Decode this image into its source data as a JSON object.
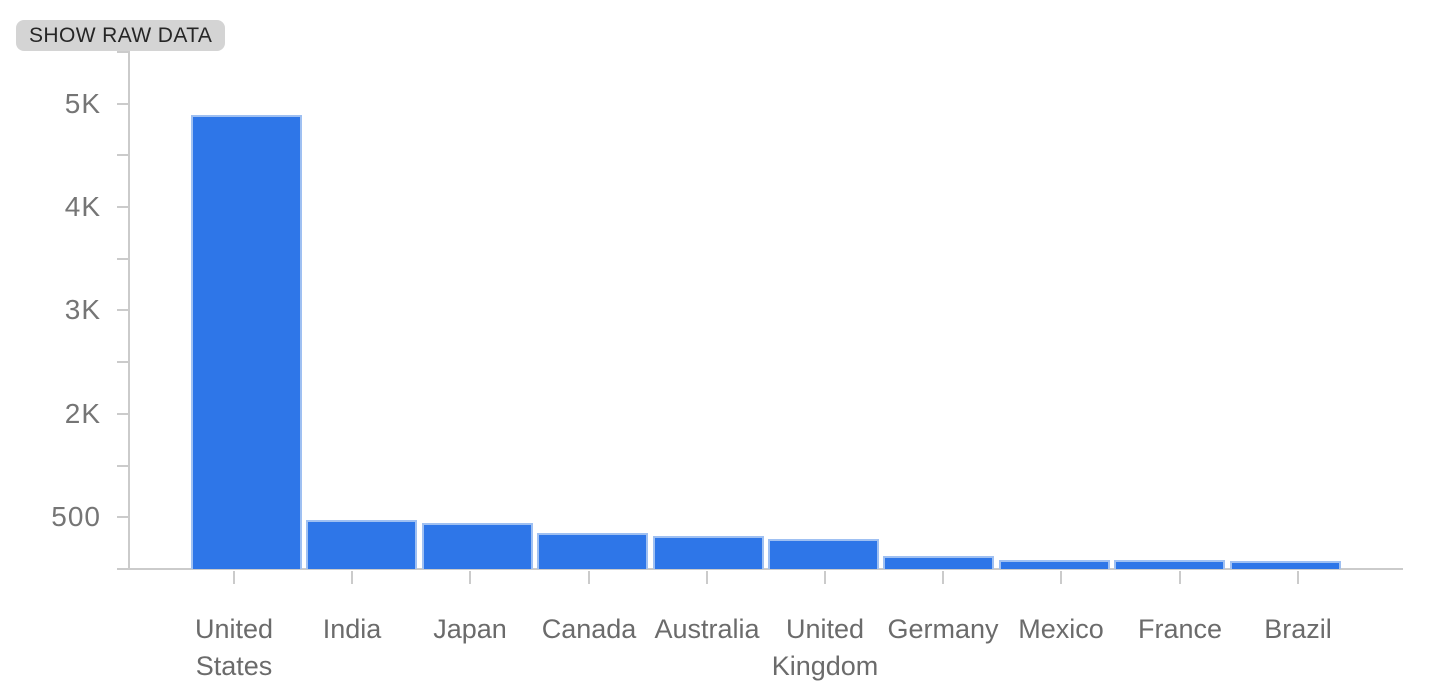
{
  "toolbar": {
    "show_raw_data_label": "SHOW RAW DATA",
    "chip_bg_color": "#d4d4d4",
    "chip_text_color": "#262626"
  },
  "chart_data": {
    "type": "bar",
    "title": "",
    "xlabel": "",
    "ylabel": "",
    "categories": [
      "United States",
      "India",
      "Japan",
      "Canada",
      "Australia",
      "United Kingdom",
      "Germany",
      "Mexico",
      "France",
      "Brazil"
    ],
    "values": [
      4890,
      475,
      445,
      350,
      320,
      290,
      125,
      90,
      88,
      82
    ],
    "y_tick_labels": [
      "500",
      "2K",
      "3K",
      "4K",
      "5K"
    ],
    "y_tick_values": [
      500,
      2000,
      3000,
      4000,
      5000
    ],
    "ylim": [
      0,
      5500
    ],
    "grid": false,
    "legend": false,
    "bar_color": "#2e76e8",
    "bar_stroke_color": "#9fc0f2",
    "axis_color": "#cbcbcb",
    "y_label_color": "#757575",
    "category_label_color": "#6b6b6b"
  }
}
